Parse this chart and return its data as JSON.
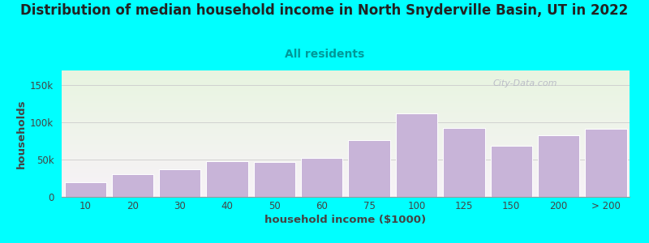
{
  "title": "Distribution of median household income in North Snyderville Basin, UT in 2022",
  "subtitle": "All residents",
  "xlabel": "household income ($1000)",
  "ylabel": "households",
  "background_color": "#00FFFF",
  "bar_color": "#c8b4d8",
  "bar_edge_color": "#ffffff",
  "categories": [
    "10",
    "20",
    "30",
    "40",
    "50",
    "60",
    "75",
    "100",
    "125",
    "150",
    "200",
    "> 200"
  ],
  "values": [
    20000,
    30000,
    37000,
    48000,
    47000,
    52000,
    76000,
    112000,
    93000,
    69000,
    83000,
    92000
  ],
  "ylim": [
    0,
    170000
  ],
  "yticks": [
    0,
    50000,
    100000,
    150000
  ],
  "ytick_labels": [
    "0",
    "50k",
    "100k",
    "150k"
  ],
  "watermark": "City-Data.com",
  "title_fontsize": 12,
  "subtitle_fontsize": 10,
  "axis_label_fontsize": 9.5,
  "tick_fontsize": 8.5,
  "title_color": "#222222",
  "subtitle_color": "#009999",
  "label_color": "#444444",
  "tick_color": "#444444"
}
